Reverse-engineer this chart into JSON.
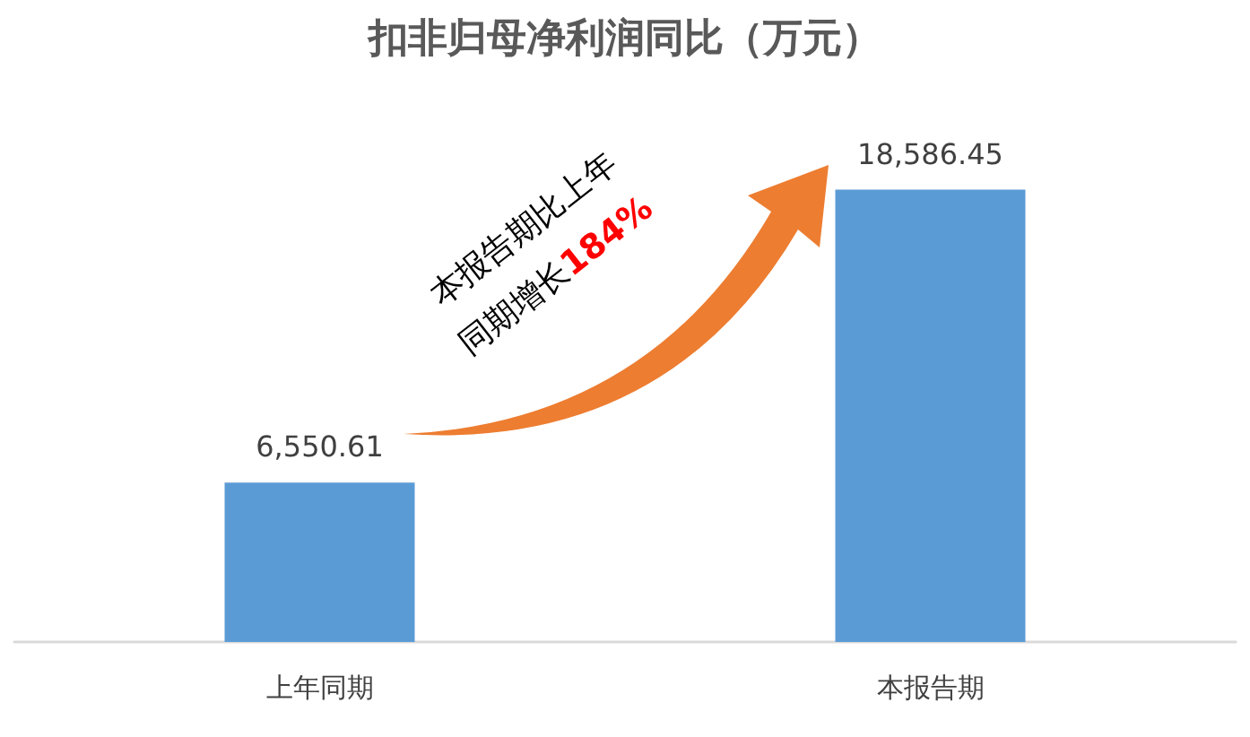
{
  "chart_data": {
    "type": "bar",
    "title": "扣非归母净利润同比（万元）",
    "categories": [
      "上年同期",
      "本报告期"
    ],
    "values": [
      6550.61,
      18586.45
    ],
    "value_labels": [
      "6,550.61",
      "18,586.45"
    ],
    "color": "#5b9bd5",
    "annotations": [
      "本报告期比上年",
      "同期增长184%"
    ]
  }
}
